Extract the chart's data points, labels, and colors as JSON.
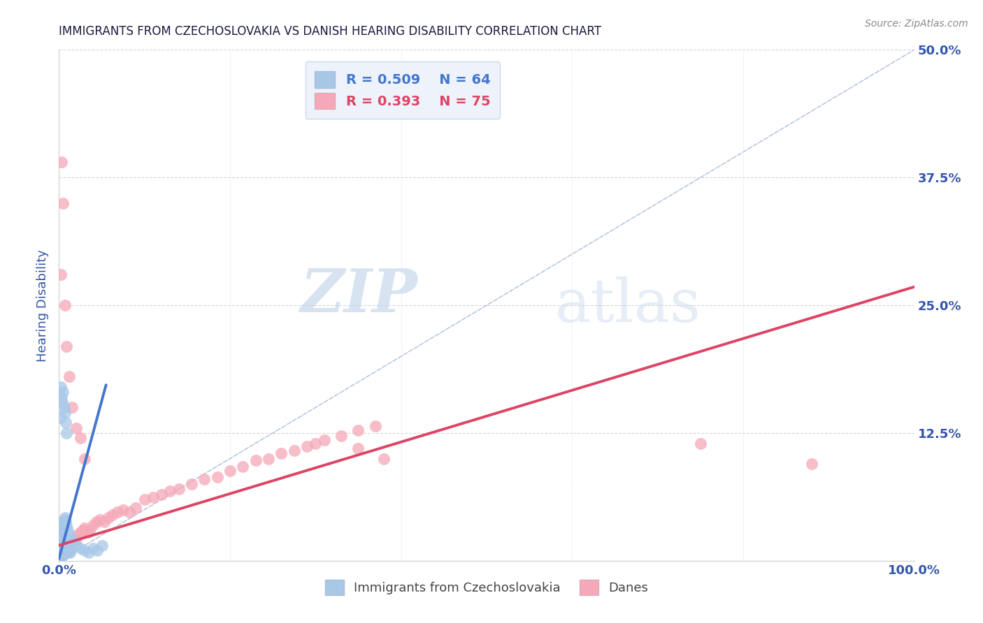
{
  "title": "IMMIGRANTS FROM CZECHOSLOVAKIA VS DANISH HEARING DISABILITY CORRELATION CHART",
  "source_text": "Source: ZipAtlas.com",
  "ylabel": "Hearing Disability",
  "xmin": 0.0,
  "xmax": 1.0,
  "ymin": 0.0,
  "ymax": 0.5,
  "yticks": [
    0.0,
    0.125,
    0.25,
    0.375,
    0.5
  ],
  "ytick_labels": [
    "",
    "12.5%",
    "25.0%",
    "37.5%",
    "50.0%"
  ],
  "xtick_labels": [
    "0.0%",
    "",
    "",
    "",
    "",
    "100.0%"
  ],
  "xticks": [
    0.0,
    0.2,
    0.4,
    0.6,
    0.8,
    1.0
  ],
  "blue_R": 0.509,
  "blue_N": 64,
  "pink_R": 0.393,
  "pink_N": 75,
  "blue_color": "#a8c8e8",
  "pink_color": "#f5a8b8",
  "blue_line_color": "#4477cc",
  "pink_line_color": "#dd4466",
  "diagonal_color": "#b8c8e0",
  "watermark_zip": "ZIP",
  "watermark_atlas": "atlas",
  "legend_blue_label": "Immigrants from Czechoslovakia",
  "legend_pink_label": "Danes",
  "blue_points_x": [
    0.0005,
    0.001,
    0.001,
    0.0015,
    0.002,
    0.002,
    0.002,
    0.003,
    0.003,
    0.003,
    0.004,
    0.004,
    0.004,
    0.005,
    0.005,
    0.005,
    0.006,
    0.006,
    0.006,
    0.007,
    0.007,
    0.008,
    0.008,
    0.009,
    0.009,
    0.01,
    0.01,
    0.011,
    0.012,
    0.013,
    0.001,
    0.001,
    0.002,
    0.002,
    0.003,
    0.003,
    0.004,
    0.004,
    0.005,
    0.005,
    0.006,
    0.007,
    0.008,
    0.009,
    0.01,
    0.012,
    0.015,
    0.018,
    0.02,
    0.025,
    0.03,
    0.035,
    0.04,
    0.045,
    0.05,
    0.001,
    0.002,
    0.003,
    0.004,
    0.005,
    0.006,
    0.007,
    0.008,
    0.009
  ],
  "blue_points_y": [
    0.002,
    0.003,
    0.005,
    0.004,
    0.003,
    0.006,
    0.008,
    0.004,
    0.007,
    0.01,
    0.005,
    0.008,
    0.012,
    0.006,
    0.009,
    0.013,
    0.007,
    0.01,
    0.015,
    0.008,
    0.012,
    0.009,
    0.013,
    0.01,
    0.015,
    0.008,
    0.012,
    0.009,
    0.01,
    0.008,
    0.015,
    0.02,
    0.018,
    0.022,
    0.025,
    0.03,
    0.028,
    0.035,
    0.032,
    0.038,
    0.04,
    0.042,
    0.038,
    0.035,
    0.03,
    0.025,
    0.02,
    0.018,
    0.015,
    0.012,
    0.01,
    0.008,
    0.012,
    0.01,
    0.015,
    0.14,
    0.17,
    0.16,
    0.155,
    0.165,
    0.15,
    0.145,
    0.135,
    0.125
  ],
  "pink_points_x": [
    0.0005,
    0.001,
    0.001,
    0.002,
    0.002,
    0.003,
    0.003,
    0.004,
    0.004,
    0.005,
    0.005,
    0.006,
    0.006,
    0.007,
    0.008,
    0.009,
    0.01,
    0.011,
    0.012,
    0.013,
    0.014,
    0.015,
    0.016,
    0.018,
    0.02,
    0.022,
    0.025,
    0.028,
    0.03,
    0.033,
    0.036,
    0.04,
    0.044,
    0.048,
    0.053,
    0.058,
    0.063,
    0.068,
    0.075,
    0.082,
    0.09,
    0.1,
    0.11,
    0.12,
    0.13,
    0.14,
    0.155,
    0.17,
    0.185,
    0.2,
    0.215,
    0.23,
    0.245,
    0.26,
    0.275,
    0.29,
    0.31,
    0.33,
    0.35,
    0.37,
    0.002,
    0.003,
    0.005,
    0.007,
    0.009,
    0.012,
    0.015,
    0.02,
    0.025,
    0.03,
    0.3,
    0.35,
    0.38,
    0.75,
    0.88
  ],
  "pink_points_y": [
    0.002,
    0.003,
    0.006,
    0.004,
    0.008,
    0.005,
    0.01,
    0.006,
    0.012,
    0.007,
    0.013,
    0.008,
    0.015,
    0.01,
    0.012,
    0.008,
    0.01,
    0.012,
    0.015,
    0.01,
    0.012,
    0.015,
    0.018,
    0.02,
    0.022,
    0.025,
    0.028,
    0.03,
    0.032,
    0.028,
    0.03,
    0.035,
    0.038,
    0.04,
    0.038,
    0.042,
    0.045,
    0.048,
    0.05,
    0.048,
    0.052,
    0.06,
    0.062,
    0.065,
    0.068,
    0.07,
    0.075,
    0.08,
    0.082,
    0.088,
    0.092,
    0.098,
    0.1,
    0.105,
    0.108,
    0.112,
    0.118,
    0.122,
    0.128,
    0.132,
    0.28,
    0.39,
    0.35,
    0.25,
    0.21,
    0.18,
    0.15,
    0.13,
    0.12,
    0.1,
    0.115,
    0.11,
    0.1,
    0.115,
    0.095
  ],
  "blue_trend_x": [
    0.0,
    0.055
  ],
  "blue_trend_y": [
    0.002,
    0.172
  ],
  "pink_trend_x": [
    0.0,
    1.0
  ],
  "pink_trend_y": [
    0.015,
    0.268
  ],
  "background_color": "#ffffff",
  "grid_color": "#cccccc",
  "title_color": "#1a1a3e",
  "axis_label_color": "#3355aa",
  "tick_color": "#3355aa",
  "legend_box_color": "#eef3fb",
  "legend_border_color": "#c8d8f0"
}
